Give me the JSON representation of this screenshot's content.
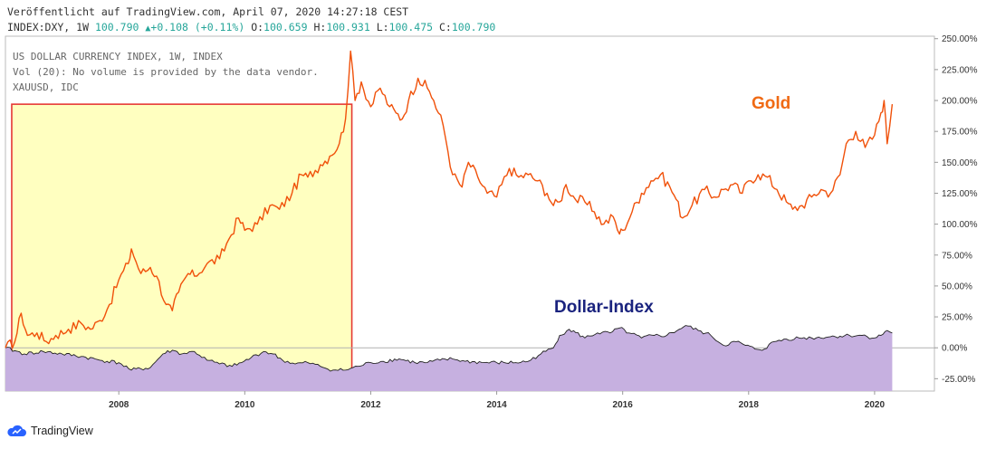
{
  "header": {
    "published": "Veröffentlicht auf TradingView.com, April 07, 2020 14:27:18 CEST",
    "symbol": "INDEX:DXY, 1W",
    "last": "100.790",
    "up_glyph": "▲",
    "change": "+0.108 (+0.11%)",
    "o_label": "O:",
    "o_value": "100.659",
    "h_label": "H:",
    "h_value": "100.931",
    "l_label": "L:",
    "l_value": "100.475",
    "c_label": "C:",
    "c_value": "100.790"
  },
  "legend": [
    "US DOLLAR CURRENCY INDEX, 1W, INDEX",
    "Vol (20): No volume is provided by the data vendor.",
    "XAUUSD, IDC"
  ],
  "footer": {
    "brand": "TradingView",
    "logo_icon": "tradingview-cloud-icon"
  },
  "colors": {
    "gold": "#f0510a",
    "gold_label": "#f06a14",
    "dollar_fill": "#c6b0e0",
    "dollar_line": "#222222",
    "dollar_label": "#1a237e",
    "highlight_fill": "#ffffc0",
    "highlight_border": "#e53935"
  },
  "chart_data": {
    "type": "line",
    "xlabel": "",
    "ylabel": "",
    "x_ticks": [
      "2008",
      "2010",
      "2012",
      "2014",
      "2016",
      "2018",
      "2020"
    ],
    "y_ticks": [
      "250.00%",
      "225.00%",
      "200.00%",
      "175.00%",
      "150.00%",
      "125.00%",
      "100.00%",
      "75.00%",
      "50.00%",
      "25.00%",
      "0.00%",
      "-25.00%"
    ],
    "xlim": [
      2006.2,
      2020.95
    ],
    "ylim": [
      -35,
      252
    ],
    "highlight_range": {
      "x": [
        2006.3,
        2011.7
      ],
      "y": [
        -29,
        197
      ]
    },
    "series": [
      {
        "name": "Gold",
        "unit": "%",
        "points": [
          [
            2006.2,
            0
          ],
          [
            2006.35,
            5
          ],
          [
            2006.45,
            28
          ],
          [
            2006.55,
            10
          ],
          [
            2006.7,
            12
          ],
          [
            2006.85,
            5
          ],
          [
            2007.0,
            10
          ],
          [
            2007.2,
            15
          ],
          [
            2007.4,
            20
          ],
          [
            2007.55,
            15
          ],
          [
            2007.7,
            22
          ],
          [
            2007.85,
            35
          ],
          [
            2008.0,
            55
          ],
          [
            2008.15,
            68
          ],
          [
            2008.2,
            80
          ],
          [
            2008.35,
            60
          ],
          [
            2008.5,
            65
          ],
          [
            2008.6,
            58
          ],
          [
            2008.75,
            35
          ],
          [
            2008.85,
            30
          ],
          [
            2008.95,
            45
          ],
          [
            2009.1,
            60
          ],
          [
            2009.2,
            58
          ],
          [
            2009.4,
            68
          ],
          [
            2009.6,
            72
          ],
          [
            2009.75,
            88
          ],
          [
            2009.9,
            105
          ],
          [
            2010.0,
            95
          ],
          [
            2010.2,
            100
          ],
          [
            2010.4,
            115
          ],
          [
            2010.55,
            112
          ],
          [
            2010.75,
            125
          ],
          [
            2010.9,
            140
          ],
          [
            2011.0,
            138
          ],
          [
            2011.2,
            148
          ],
          [
            2011.35,
            155
          ],
          [
            2011.5,
            165
          ],
          [
            2011.6,
            185
          ],
          [
            2011.68,
            240
          ],
          [
            2011.75,
            200
          ],
          [
            2011.85,
            215
          ],
          [
            2012.0,
            195
          ],
          [
            2012.15,
            210
          ],
          [
            2012.3,
            195
          ],
          [
            2012.4,
            190
          ],
          [
            2012.5,
            185
          ],
          [
            2012.6,
            200
          ],
          [
            2012.75,
            218
          ],
          [
            2012.9,
            210
          ],
          [
            2013.0,
            200
          ],
          [
            2013.15,
            180
          ],
          [
            2013.3,
            140
          ],
          [
            2013.45,
            130
          ],
          [
            2013.55,
            150
          ],
          [
            2013.7,
            138
          ],
          [
            2013.85,
            125
          ],
          [
            2014.0,
            122
          ],
          [
            2014.2,
            145
          ],
          [
            2014.35,
            138
          ],
          [
            2014.5,
            140
          ],
          [
            2014.65,
            135
          ],
          [
            2014.8,
            125
          ],
          [
            2014.9,
            115
          ],
          [
            2015.0,
            118
          ],
          [
            2015.1,
            132
          ],
          [
            2015.25,
            120
          ],
          [
            2015.4,
            118
          ],
          [
            2015.55,
            110
          ],
          [
            2015.7,
            100
          ],
          [
            2015.85,
            106
          ],
          [
            2015.95,
            92
          ],
          [
            2016.0,
            95
          ],
          [
            2016.15,
            110
          ],
          [
            2016.3,
            125
          ],
          [
            2016.45,
            135
          ],
          [
            2016.6,
            140
          ],
          [
            2016.75,
            130
          ],
          [
            2016.85,
            120
          ],
          [
            2016.95,
            105
          ],
          [
            2017.1,
            115
          ],
          [
            2017.3,
            128
          ],
          [
            2017.45,
            122
          ],
          [
            2017.6,
            128
          ],
          [
            2017.75,
            132
          ],
          [
            2017.9,
            125
          ],
          [
            2018.0,
            135
          ],
          [
            2018.15,
            140
          ],
          [
            2018.3,
            138
          ],
          [
            2018.45,
            128
          ],
          [
            2018.6,
            118
          ],
          [
            2018.7,
            112
          ],
          [
            2018.85,
            115
          ],
          [
            2019.0,
            122
          ],
          [
            2019.15,
            128
          ],
          [
            2019.3,
            125
          ],
          [
            2019.45,
            140
          ],
          [
            2019.55,
            165
          ],
          [
            2019.7,
            175
          ],
          [
            2019.85,
            162
          ],
          [
            2020.0,
            172
          ],
          [
            2020.1,
            190
          ],
          [
            2020.15,
            200
          ],
          [
            2020.2,
            165
          ],
          [
            2020.28,
            197
          ]
        ]
      },
      {
        "name": "Dollar-Index",
        "unit": "%",
        "points": [
          [
            2006.2,
            0
          ],
          [
            2006.5,
            -5
          ],
          [
            2006.8,
            -3
          ],
          [
            2007.1,
            -5
          ],
          [
            2007.4,
            -7
          ],
          [
            2007.7,
            -10
          ],
          [
            2008.0,
            -12
          ],
          [
            2008.2,
            -18
          ],
          [
            2008.5,
            -16
          ],
          [
            2008.7,
            -5
          ],
          [
            2008.85,
            -2
          ],
          [
            2009.0,
            -5
          ],
          [
            2009.2,
            -3
          ],
          [
            2009.4,
            -10
          ],
          [
            2009.6,
            -13
          ],
          [
            2009.8,
            -15
          ],
          [
            2009.95,
            -12
          ],
          [
            2010.1,
            -8
          ],
          [
            2010.3,
            -3
          ],
          [
            2010.45,
            -5
          ],
          [
            2010.6,
            -10
          ],
          [
            2010.8,
            -13
          ],
          [
            2011.0,
            -12
          ],
          [
            2011.2,
            -15
          ],
          [
            2011.4,
            -18
          ],
          [
            2011.6,
            -18
          ],
          [
            2011.8,
            -15
          ],
          [
            2012.0,
            -12
          ],
          [
            2012.2,
            -11
          ],
          [
            2012.45,
            -9
          ],
          [
            2012.7,
            -12
          ],
          [
            2012.9,
            -12
          ],
          [
            2013.1,
            -10
          ],
          [
            2013.3,
            -9
          ],
          [
            2013.5,
            -11
          ],
          [
            2013.8,
            -12
          ],
          [
            2014.0,
            -12
          ],
          [
            2014.3,
            -12
          ],
          [
            2014.5,
            -11
          ],
          [
            2014.7,
            -5
          ],
          [
            2014.9,
            0
          ],
          [
            2015.0,
            10
          ],
          [
            2015.15,
            15
          ],
          [
            2015.4,
            8
          ],
          [
            2015.6,
            12
          ],
          [
            2015.8,
            12
          ],
          [
            2015.95,
            16
          ],
          [
            2016.1,
            12
          ],
          [
            2016.3,
            8
          ],
          [
            2016.5,
            10
          ],
          [
            2016.7,
            10
          ],
          [
            2016.9,
            15
          ],
          [
            2017.0,
            18
          ],
          [
            2017.2,
            14
          ],
          [
            2017.4,
            10
          ],
          [
            2017.6,
            2
          ],
          [
            2017.8,
            5
          ],
          [
            2017.95,
            2
          ],
          [
            2018.1,
            -1
          ],
          [
            2018.25,
            -1
          ],
          [
            2018.4,
            5
          ],
          [
            2018.6,
            7
          ],
          [
            2018.8,
            8
          ],
          [
            2019.0,
            8
          ],
          [
            2019.3,
            9
          ],
          [
            2019.6,
            10
          ],
          [
            2019.8,
            10
          ],
          [
            2020.0,
            8
          ],
          [
            2020.1,
            10
          ],
          [
            2020.2,
            14
          ],
          [
            2020.28,
            12
          ]
        ]
      }
    ],
    "annotations": [
      {
        "text": "Gold",
        "series": "Gold"
      },
      {
        "text": "Dollar-Index",
        "series": "Dollar-Index"
      }
    ]
  }
}
